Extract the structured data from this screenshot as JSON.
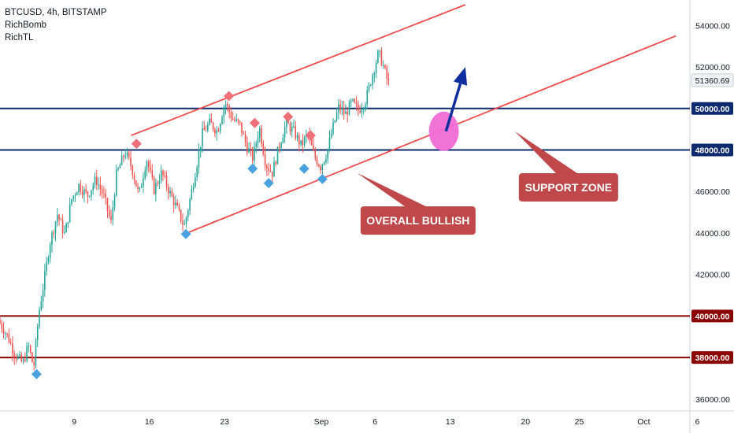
{
  "legend": {
    "symbol_line": "BTCUSD, 4h, BITSTAMP",
    "indicators": [
      "RichBomb",
      "RichTL"
    ]
  },
  "colors": {
    "up_candle": "#26a69a",
    "down_candle": "#ef5350",
    "channel_line": "#f04a4a",
    "blue_level": "#0d2a6e",
    "red_level": "#8b0000",
    "callout_fill": "#c0484b",
    "highlight_circle": "#f06bd6",
    "arrow": "#0f2f9f",
    "marker_red": "#f0707a",
    "marker_blue": "#4aa3e0",
    "last_price_badge": "#f2f3f5"
  },
  "chart_data": {
    "type": "candlestick",
    "symbol": "BTCUSD",
    "timeframe": "4h",
    "exchange": "BITSTAMP",
    "ylim": [
      35500,
      55000
    ],
    "y_ticks": [
      36000,
      38000,
      40000,
      42000,
      44000,
      46000,
      48000,
      50000,
      52000,
      54000
    ],
    "y_tick_labels": [
      "36000.00",
      "38000.00",
      "40000.00",
      "42000.00",
      "44000.00",
      "46000.00",
      "48000.00",
      "50000.00",
      "52000.00",
      "54000.00"
    ],
    "x_ticks": [
      {
        "label": "9",
        "day": 9
      },
      {
        "label": "16",
        "day": 16
      },
      {
        "label": "23",
        "day": 23
      },
      {
        "label": "Sep",
        "day": 32
      },
      {
        "label": "6",
        "day": 37
      },
      {
        "label": "13",
        "day": 44
      },
      {
        "label": "20",
        "day": 51
      },
      {
        "label": "25",
        "day": 56
      },
      {
        "label": "Oct",
        "day": 62
      },
      {
        "label": "6",
        "day": 67
      }
    ],
    "xlim_days": [
      2.1,
      70.4
    ],
    "last_price": 51360.69,
    "last_price_label": "51360.69",
    "horizontal_levels": [
      {
        "price": 50000,
        "label": "50000.00",
        "color": "#0d2a6e"
      },
      {
        "price": 48000,
        "label": "48000.00",
        "color": "#0d2a6e"
      },
      {
        "price": 40000,
        "label": "40000.00",
        "color": "#8b0000"
      },
      {
        "price": 38000,
        "label": "38000.00",
        "color": "#8b0000"
      }
    ],
    "price_path": [
      {
        "day": 2.1,
        "price": 39800
      },
      {
        "day": 3.0,
        "price": 39000
      },
      {
        "day": 3.6,
        "price": 38200
      },
      {
        "day": 4.4,
        "price": 37700
      },
      {
        "day": 4.9,
        "price": 38600
      },
      {
        "day": 5.4,
        "price": 37500
      },
      {
        "day": 5.9,
        "price": 40200
      },
      {
        "day": 6.4,
        "price": 41800
      },
      {
        "day": 6.9,
        "price": 43500
      },
      {
        "day": 7.6,
        "price": 44900
      },
      {
        "day": 8.3,
        "price": 43900
      },
      {
        "day": 8.9,
        "price": 45600
      },
      {
        "day": 9.6,
        "price": 46300
      },
      {
        "day": 10.4,
        "price": 45800
      },
      {
        "day": 11.2,
        "price": 46600
      },
      {
        "day": 11.9,
        "price": 45800
      },
      {
        "day": 12.6,
        "price": 44500
      },
      {
        "day": 13.1,
        "price": 46800
      },
      {
        "day": 13.9,
        "price": 47900
      },
      {
        "day": 14.5,
        "price": 47200
      },
      {
        "day": 15.2,
        "price": 45800
      },
      {
        "day": 15.9,
        "price": 47600
      },
      {
        "day": 16.6,
        "price": 46100
      },
      {
        "day": 17.3,
        "price": 46900
      },
      {
        "day": 18.1,
        "price": 45900
      },
      {
        "day": 18.8,
        "price": 45100
      },
      {
        "day": 19.4,
        "price": 44300
      },
      {
        "day": 19.9,
        "price": 45500
      },
      {
        "day": 20.5,
        "price": 47100
      },
      {
        "day": 21.1,
        "price": 48800
      },
      {
        "day": 21.8,
        "price": 49300
      },
      {
        "day": 22.5,
        "price": 48900
      },
      {
        "day": 23.2,
        "price": 50300
      },
      {
        "day": 23.9,
        "price": 49500
      },
      {
        "day": 24.6,
        "price": 49200
      },
      {
        "day": 25.2,
        "price": 48200
      },
      {
        "day": 25.8,
        "price": 47600
      },
      {
        "day": 26.4,
        "price": 49100
      },
      {
        "day": 27.0,
        "price": 47300
      },
      {
        "day": 27.6,
        "price": 46900
      },
      {
        "day": 28.3,
        "price": 48300
      },
      {
        "day": 28.9,
        "price": 49300
      },
      {
        "day": 29.6,
        "price": 48900
      },
      {
        "day": 30.3,
        "price": 48200
      },
      {
        "day": 30.9,
        "price": 48800
      },
      {
        "day": 31.5,
        "price": 47700
      },
      {
        "day": 32.1,
        "price": 47200
      },
      {
        "day": 32.7,
        "price": 47900
      },
      {
        "day": 33.2,
        "price": 49000
      },
      {
        "day": 33.8,
        "price": 50100
      },
      {
        "day": 34.4,
        "price": 49700
      },
      {
        "day": 35.0,
        "price": 50300
      },
      {
        "day": 35.6,
        "price": 49900
      },
      {
        "day": 36.3,
        "price": 50400
      },
      {
        "day": 36.9,
        "price": 51600
      },
      {
        "day": 37.5,
        "price": 52700
      },
      {
        "day": 37.9,
        "price": 52100
      },
      {
        "day": 38.3,
        "price": 51360
      }
    ],
    "upper_channel": {
      "start": {
        "day": 14.3,
        "price": 48700
      },
      "end": {
        "day": 45.4,
        "price": 55000
      }
    },
    "lower_channel": {
      "start": {
        "day": 19.5,
        "price": 44000
      },
      "end": {
        "day": 65.0,
        "price": 53500
      }
    },
    "signal_markers": {
      "sell": [
        {
          "day": 14.8,
          "price": 48300
        },
        {
          "day": 23.4,
          "price": 50600
        },
        {
          "day": 25.8,
          "price": 49300
        },
        {
          "day": 28.9,
          "price": 49600
        },
        {
          "day": 31.0,
          "price": 48700
        }
      ],
      "buy": [
        {
          "day": 5.5,
          "price": 37200
        },
        {
          "day": 19.4,
          "price": 43950
        },
        {
          "day": 25.6,
          "price": 47100
        },
        {
          "day": 27.1,
          "price": 46400
        },
        {
          "day": 30.4,
          "price": 47100
        },
        {
          "day": 32.1,
          "price": 46600
        }
      ]
    },
    "annotations": [
      {
        "text": "OVERALL BULLISH",
        "anchor": {
          "day": 41.0,
          "price": 44600
        },
        "pointer_to": {
          "day": 35.3,
          "price": 46900
        }
      },
      {
        "text": "SUPPORT ZONE",
        "anchor": {
          "day": 55.0,
          "price": 46200
        },
        "pointer_to": {
          "day": 50.0,
          "price": 48900
        }
      }
    ],
    "highlight_circle": {
      "day": 43.4,
      "price": 48900
    },
    "arrow": {
      "from": {
        "day": 43.6,
        "price": 48900
      },
      "to": {
        "day": 45.4,
        "price": 52000
      }
    }
  }
}
